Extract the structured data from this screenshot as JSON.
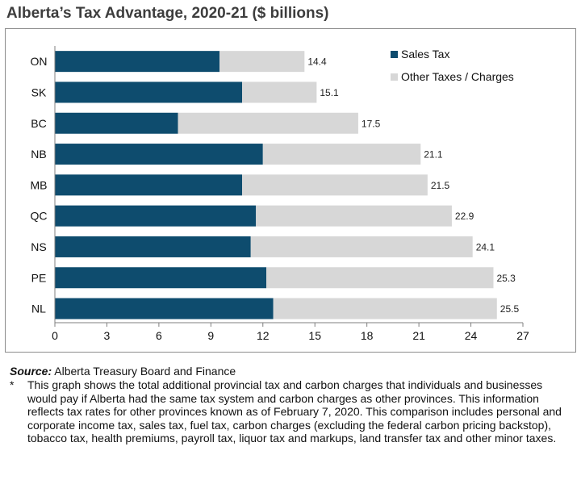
{
  "title": "Alberta’s Tax Advantage, 2020-21 ($ billions)",
  "chart_data": {
    "type": "bar",
    "orientation": "horizontal",
    "stacked": true,
    "title": "Alberta’s Tax Advantage, 2020-21 ($ billions)",
    "xlabel": "",
    "ylabel": "",
    "categories": [
      "ON",
      "SK",
      "BC",
      "NB",
      "MB",
      "QC",
      "NS",
      "PE",
      "NL"
    ],
    "series": [
      {
        "name": "Sales Tax",
        "color": "#0e4c6e",
        "values": [
          9.5,
          10.8,
          7.1,
          12.0,
          10.8,
          11.6,
          11.3,
          12.2,
          12.6
        ]
      },
      {
        "name": "Other Taxes / Charges",
        "color": "#d7d7d7",
        "values": [
          4.9,
          4.3,
          10.4,
          9.1,
          10.7,
          11.3,
          12.8,
          13.1,
          12.9
        ]
      }
    ],
    "totals": [
      "14.4",
      "15.1",
      "17.5",
      "21.1",
      "21.5",
      "22.9",
      "24.1",
      "25.3",
      "25.5"
    ],
    "xlim": [
      0,
      27
    ],
    "xticks": [
      "0",
      "3",
      "6",
      "9",
      "12",
      "15",
      "18",
      "21",
      "24",
      "27"
    ],
    "legend_position": "top-right",
    "grid": false
  },
  "footnotes": {
    "source_label": "Source:",
    "source_text": " Alberta Treasury Board and Finance",
    "note_marker": "*",
    "note_text": "This graph shows the total additional provincial tax and carbon charges that individuals and businesses would pay if Alberta had the same tax system and carbon charges as other provinces. This information reflects tax rates for other provinces known as of February 7, 2020. This comparison includes personal and corporate income tax, sales tax, fuel tax, carbon charges (excluding the federal carbon pricing backstop), tobacco tax, health premiums, payroll tax, liquor tax and markups, land transfer tax and other minor taxes."
  }
}
